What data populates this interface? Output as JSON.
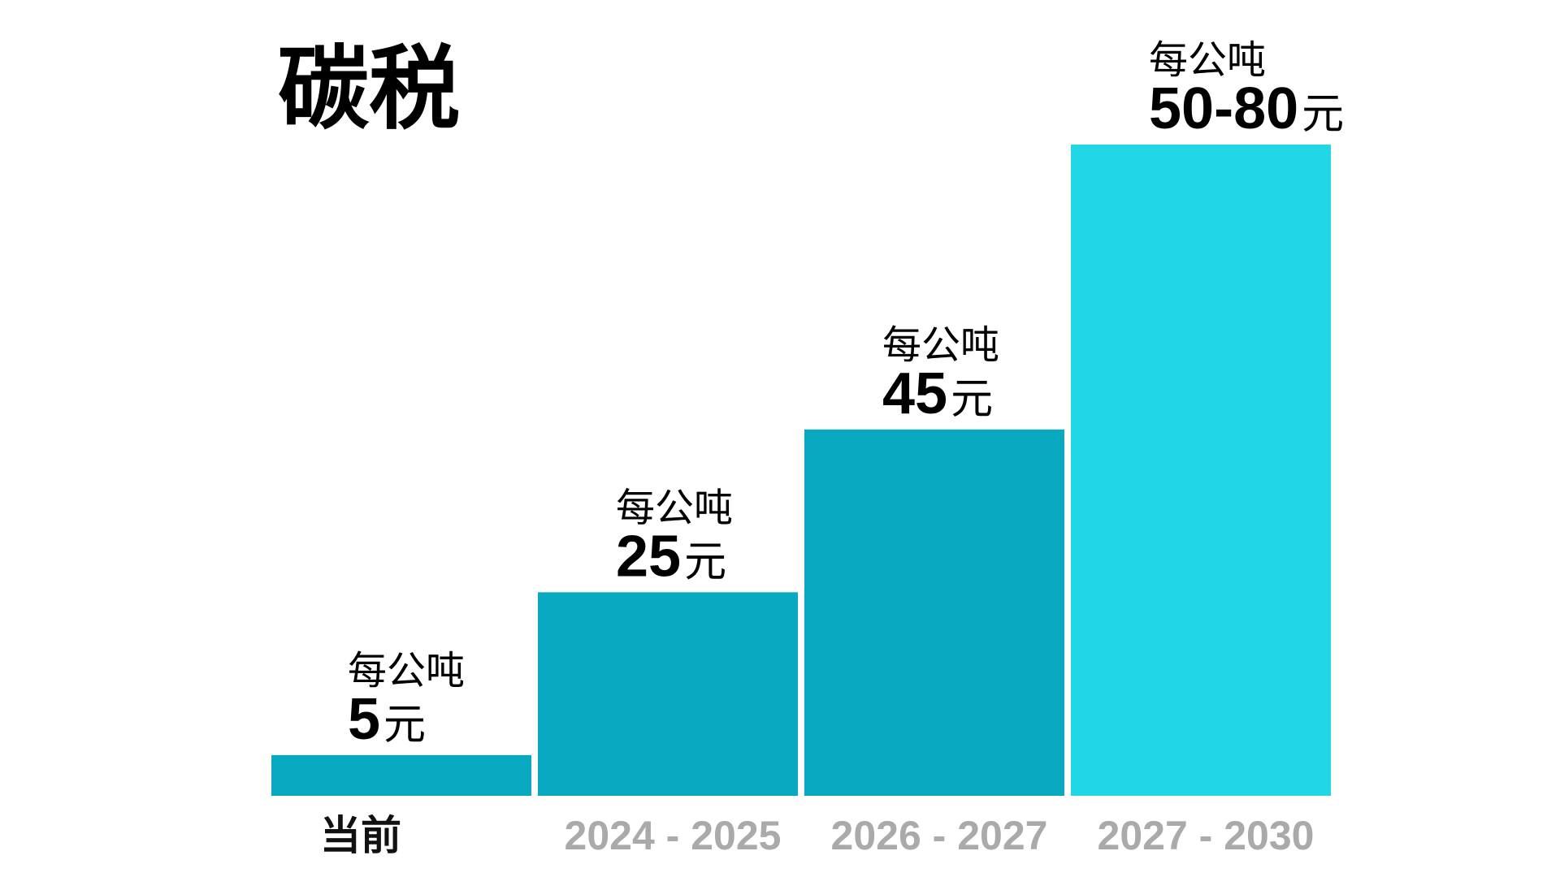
{
  "chart_data": {
    "type": "bar",
    "title": "碳税",
    "categories": [
      "当前",
      "2024 - 2025",
      "2026 - 2027",
      "2027 - 2030"
    ],
    "values": [
      5,
      25,
      45,
      80
    ],
    "value_ranges": [
      [
        5,
        5
      ],
      [
        25,
        25
      ],
      [
        45,
        45
      ],
      [
        50,
        80
      ]
    ],
    "unit_prefix": "每公吨",
    "value_labels": [
      "5",
      "25",
      "45",
      "50-80"
    ],
    "value_suffix": "元",
    "xlabel": "",
    "ylabel": "",
    "ylim": [
      0,
      80
    ],
    "grid": false,
    "legend": "none",
    "bar_colors": [
      "#08A9C1",
      "#08A9C1",
      "#08A9C1",
      "#22D7E5"
    ],
    "category_label_colors": [
      "#111111",
      "#AAAAAA",
      "#AAAAAA",
      "#AAAAAA"
    ]
  }
}
